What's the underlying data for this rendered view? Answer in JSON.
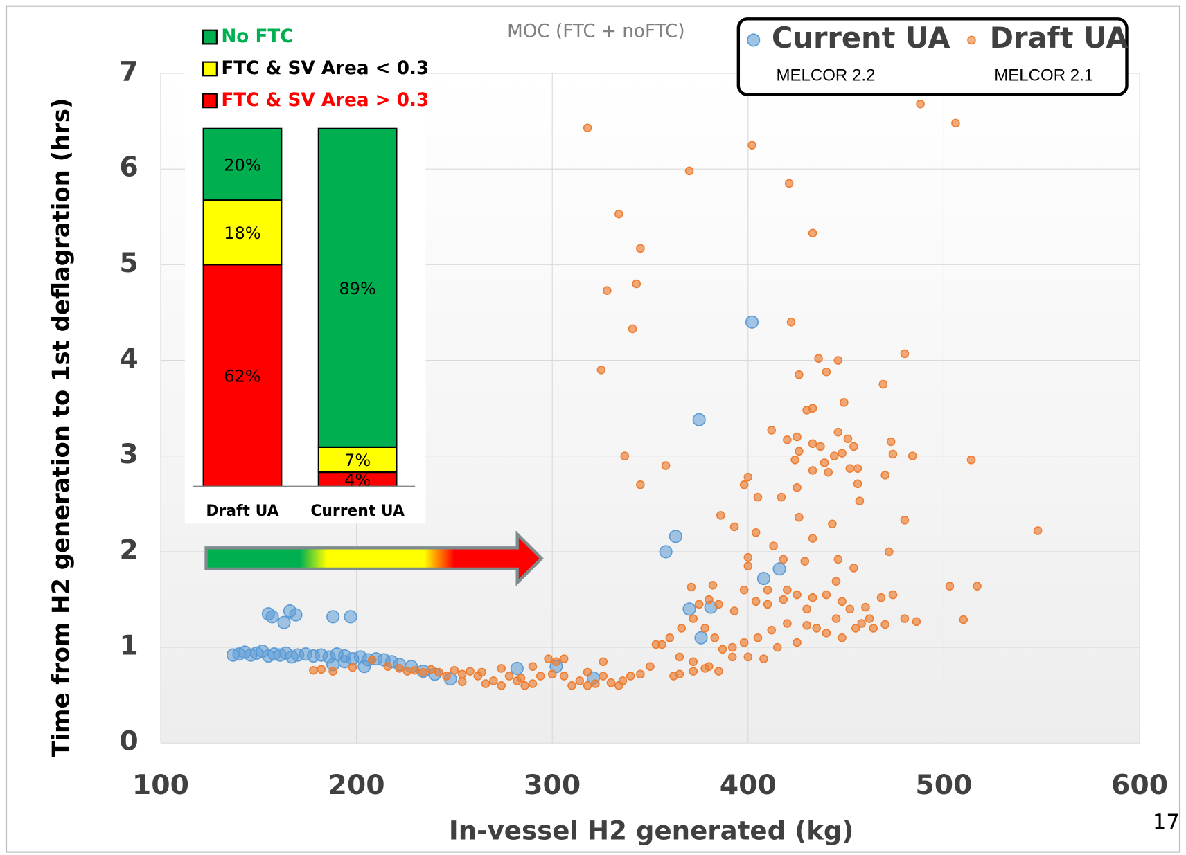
{
  "page_number": "17",
  "chart_data": [
    {
      "type": "scatter",
      "subtitle": "MOC (FTC + noFTC)",
      "xlabel": "In-vessel H2 generated (kg)",
      "ylabel": "Time from H2 generation to 1st deflagration (hrs)",
      "xlim": [
        100,
        600
      ],
      "xticks": [
        100,
        200,
        300,
        400,
        500,
        600
      ],
      "ylim": [
        0,
        7
      ],
      "yticks": [
        0,
        1,
        2,
        3,
        4,
        5,
        6,
        7
      ],
      "grid": true,
      "legend": "upper right",
      "series": [
        {
          "name": "Current UA",
          "model": "MELCOR 2.2",
          "color": "#5b9bd5",
          "x": [
            137,
            140,
            143,
            146,
            149,
            152,
            155,
            158,
            161,
            164,
            167,
            170,
            174,
            178,
            182,
            186,
            190,
            194,
            198,
            202,
            206,
            210,
            214,
            218,
            222,
            228,
            234,
            204,
            188,
            194,
            155,
            157,
            163,
            166,
            169,
            188,
            197,
            402,
            375,
            363,
            358,
            416,
            408,
            370,
            381,
            376,
            282,
            302,
            321,
            248,
            240
          ],
          "values": [
            0.92,
            0.93,
            0.95,
            0.92,
            0.94,
            0.96,
            0.91,
            0.93,
            0.92,
            0.94,
            0.9,
            0.92,
            0.93,
            0.91,
            0.92,
            0.9,
            0.93,
            0.91,
            0.88,
            0.9,
            0.87,
            0.88,
            0.87,
            0.85,
            0.82,
            0.8,
            0.75,
            0.8,
            0.82,
            0.85,
            1.35,
            1.32,
            1.26,
            1.38,
            1.34,
            1.32,
            1.32,
            4.4,
            3.38,
            2.16,
            2.0,
            1.82,
            1.72,
            1.4,
            1.42,
            1.1,
            0.78,
            0.8,
            0.68,
            0.67,
            0.72
          ]
        },
        {
          "name": "Draft UA",
          "model": "MELCOR 2.1",
          "color": "#ed7d31",
          "x": [
            318,
            488,
            506,
            402,
            370,
            421,
            334,
            433,
            345,
            328,
            343,
            341,
            422,
            325,
            480,
            436,
            446,
            426,
            440,
            469,
            449,
            430,
            433,
            412,
            420,
            425,
            433,
            437,
            446,
            451,
            454,
            426,
            444,
            448,
            473,
            474,
            484,
            514,
            337,
            358,
            424,
            439,
            452,
            456,
            433,
            441,
            456,
            470,
            345,
            398,
            400,
            405,
            417,
            425,
            457,
            386,
            426,
            443,
            480,
            393,
            404,
            433,
            548,
            413,
            472,
            400,
            418,
            429,
            446,
            454,
            400,
            371,
            382,
            445,
            503,
            517,
            510,
            375,
            380,
            385,
            393,
            404,
            410,
            418,
            425,
            433,
            440,
            448,
            460,
            468,
            474,
            480,
            486,
            470,
            462,
            455,
            448,
            440,
            430,
            420,
            412,
            405,
            398,
            392,
            387,
            383,
            378,
            372,
            366,
            360,
            356,
            365,
            372,
            380,
            385,
            392,
            400,
            408,
            415,
            425,
            435,
            445,
            452,
            458,
            464,
            398,
            410,
            420,
            430,
            365,
            372,
            378,
            362,
            350,
            345,
            340,
            336,
            330,
            326,
            322,
            318,
            314,
            310,
            306,
            302,
            298,
            294,
            290,
            286,
            282,
            278,
            274,
            270,
            266,
            262,
            258,
            254,
            250,
            246,
            242,
            238,
            234,
            230,
            226,
            222,
            216,
            208,
            198,
            188,
            182,
            178,
            326,
            306,
            300,
            290,
            284,
            274,
            264,
            254,
            318,
            334,
            353
          ],
          "values": [
            6.43,
            6.68,
            6.48,
            6.25,
            5.98,
            5.85,
            5.53,
            5.33,
            5.17,
            4.73,
            4.8,
            4.33,
            4.4,
            3.9,
            4.07,
            4.02,
            4.0,
            3.85,
            3.88,
            3.75,
            3.56,
            3.48,
            3.5,
            3.27,
            3.17,
            3.2,
            3.13,
            3.1,
            3.25,
            3.18,
            3.1,
            3.05,
            3.0,
            3.03,
            3.15,
            3.02,
            3.0,
            2.96,
            3.0,
            2.9,
            2.96,
            2.93,
            2.87,
            2.87,
            2.85,
            2.83,
            2.71,
            2.8,
            2.7,
            2.7,
            2.78,
            2.57,
            2.57,
            2.67,
            2.53,
            2.38,
            2.36,
            2.29,
            2.33,
            2.26,
            2.2,
            2.14,
            2.22,
            2.06,
            2.0,
            1.94,
            1.92,
            1.9,
            1.92,
            1.83,
            1.85,
            1.63,
            1.65,
            1.69,
            1.64,
            1.64,
            1.29,
            1.45,
            1.5,
            1.45,
            1.38,
            1.48,
            1.45,
            1.5,
            1.55,
            1.52,
            1.55,
            1.48,
            1.42,
            1.52,
            1.55,
            1.3,
            1.27,
            1.24,
            1.3,
            1.2,
            1.1,
            1.15,
            1.23,
            1.25,
            1.18,
            1.1,
            1.05,
            1.0,
            0.98,
            1.1,
            1.2,
            1.3,
            1.2,
            1.1,
            1.03,
            0.9,
            0.85,
            0.8,
            0.75,
            0.9,
            0.9,
            0.88,
            1.0,
            1.05,
            1.2,
            1.3,
            1.4,
            1.25,
            1.2,
            1.6,
            1.6,
            1.6,
            1.4,
            0.72,
            0.75,
            0.78,
            0.7,
            0.8,
            0.72,
            0.7,
            0.65,
            0.63,
            0.7,
            0.62,
            0.6,
            0.65,
            0.6,
            0.7,
            0.85,
            0.88,
            0.7,
            0.62,
            0.6,
            0.65,
            0.7,
            0.6,
            0.65,
            0.62,
            0.7,
            0.75,
            0.72,
            0.76,
            0.7,
            0.74,
            0.77,
            0.74,
            0.76,
            0.75,
            0.78,
            0.8,
            0.87,
            0.79,
            0.75,
            0.77,
            0.76,
            0.85,
            0.88,
            0.72,
            0.8,
            0.68,
            0.78,
            0.74,
            0.64,
            0.74,
            0.6,
            1.03
          ]
        }
      ]
    },
    {
      "type": "bar",
      "stacked": true,
      "categories": [
        "Draft UA",
        "Current UA"
      ],
      "series": [
        {
          "name": "FTC & SV Area > 0.3",
          "color": "#ff0000",
          "values": [
            62,
            4
          ],
          "value_labels": [
            "62%",
            "4%"
          ]
        },
        {
          "name": "FTC & SV Area < 0.3",
          "color": "#ffff00",
          "values": [
            18,
            7
          ],
          "value_labels": [
            "18%",
            "7%"
          ]
        },
        {
          "name": "No FTC",
          "color": "#00b050",
          "values": [
            20,
            89
          ],
          "value_labels": [
            "20%",
            "89%"
          ]
        }
      ]
    }
  ]
}
